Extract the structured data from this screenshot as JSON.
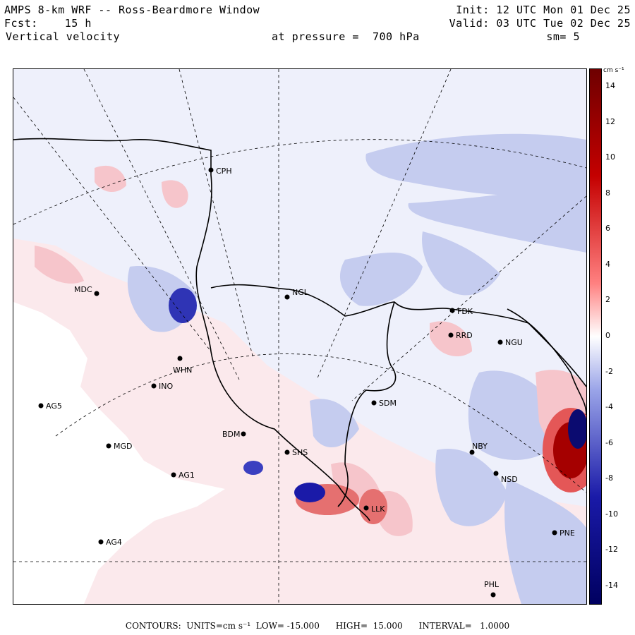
{
  "header": {
    "title": "AMPS 8-km WRF -- Ross-Beardmore Window",
    "fcst": "Fcst:    15 h",
    "field": "Vertical velocity",
    "pressure": "at pressure =  700 hPa",
    "init": "Init: 12 UTC Mon 01 Dec 25",
    "valid": "Valid: 03 UTC Tue 02 Dec 25",
    "smoothing": "sm= 5"
  },
  "colorbar": {
    "unit": "cm s⁻¹",
    "ticks": [
      "14",
      "12",
      "10",
      "8",
      "6",
      "4",
      "2",
      "0",
      "-2",
      "-4",
      "-6",
      "-8",
      "-10",
      "-12",
      "-14"
    ],
    "range": [
      -15,
      15
    ],
    "colors": {
      "positive": "#c40000",
      "negative": "#1a1aa8",
      "neutral": "#ffffff"
    }
  },
  "footer": {
    "text": "CONTOURS:  UNITS=cm s⁻¹  LOW= -15.000      HIGH=  15.000      INTERVAL=   1.0000"
  },
  "stations": [
    {
      "code": "CPH"
    },
    {
      "code": "MDC"
    },
    {
      "code": "NGL"
    },
    {
      "code": "FDK"
    },
    {
      "code": "RRD"
    },
    {
      "code": "NGU"
    },
    {
      "code": "WHN"
    },
    {
      "code": "INO"
    },
    {
      "code": "AG5"
    },
    {
      "code": "MGD"
    },
    {
      "code": "BDM"
    },
    {
      "code": "SDM"
    },
    {
      "code": "SHS"
    },
    {
      "code": "NBY"
    },
    {
      "code": "NSD"
    },
    {
      "code": "AG1"
    },
    {
      "code": "LLK"
    },
    {
      "code": "AG4"
    },
    {
      "code": "PNE"
    },
    {
      "code": "PHL"
    }
  ]
}
